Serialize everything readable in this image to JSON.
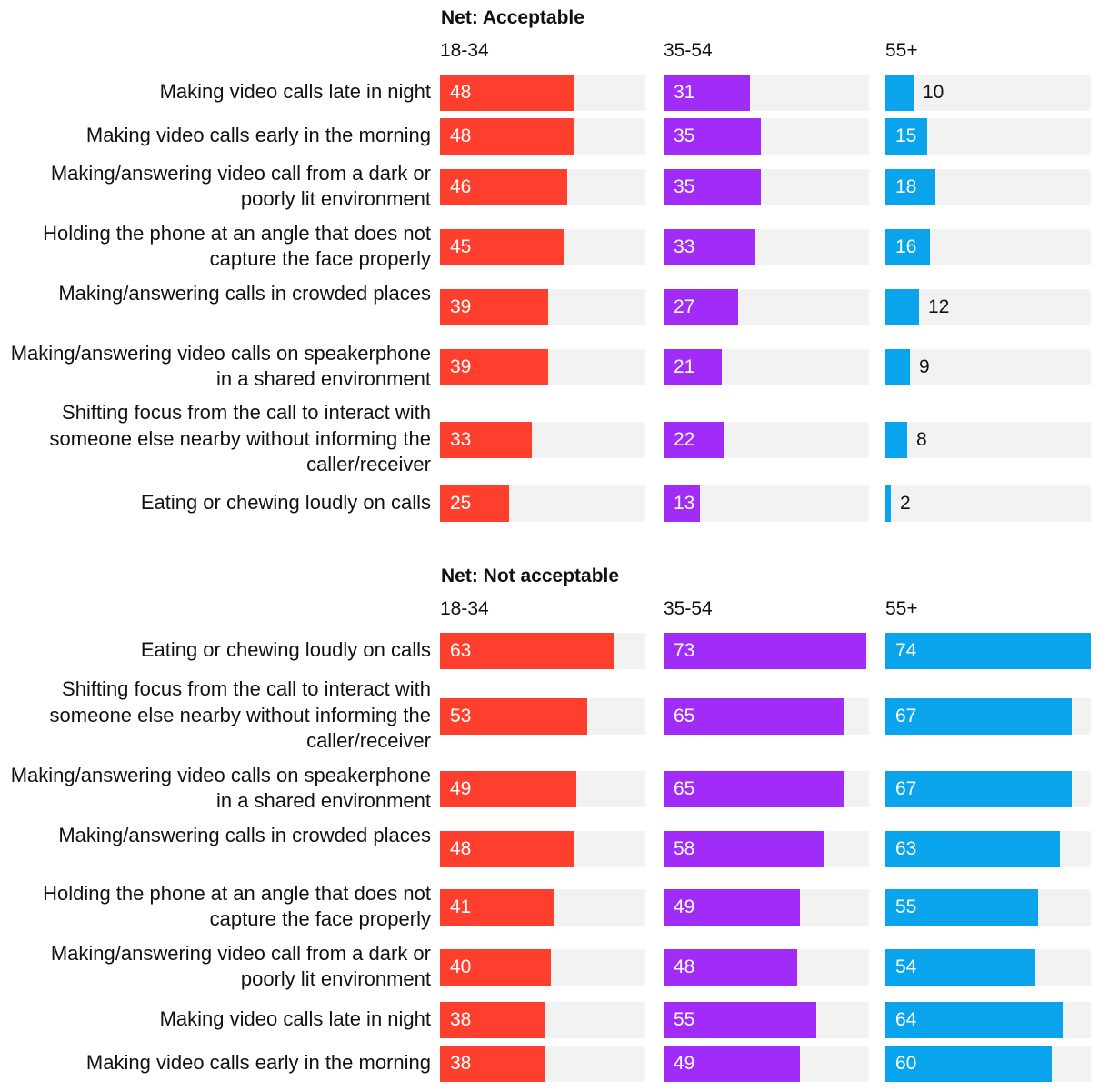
{
  "colors": {
    "age_18_34": "#ff3f2d",
    "age_35_54": "#a12cf7",
    "age_55_plus": "#0aa4ec",
    "track": "#f2f2f2"
  },
  "chart_data": [
    {
      "type": "bar",
      "orientation": "horizontal",
      "title": "Net: Acceptable",
      "series": [
        {
          "name": "18-34",
          "values": [
            48,
            48,
            46,
            45,
            39,
            39,
            33,
            25
          ]
        },
        {
          "name": "35-54",
          "values": [
            31,
            35,
            35,
            33,
            27,
            21,
            22,
            13
          ]
        },
        {
          "name": "55+",
          "values": [
            10,
            15,
            18,
            16,
            12,
            9,
            8,
            2
          ]
        }
      ],
      "categories": [
        "Making video calls late in night",
        "Making video calls early in the morning",
        "Making/answering video call from a dark or poorly lit environment",
        "Holding the phone at an angle that does not capture the face properly",
        "Making/answering calls in crowded places",
        "Making/answering video calls on speakerphone in a shared environment",
        "Shifting focus from the call to interact with someone else nearby without informing the caller/receiver",
        "Eating or chewing loudly on calls"
      ],
      "xlim": [
        0,
        74
      ]
    },
    {
      "type": "bar",
      "orientation": "horizontal",
      "title": "Net: Not acceptable",
      "series": [
        {
          "name": "18-34",
          "values": [
            63,
            53,
            49,
            48,
            41,
            40,
            38,
            38
          ]
        },
        {
          "name": "35-54",
          "values": [
            73,
            65,
            65,
            58,
            49,
            48,
            55,
            49
          ]
        },
        {
          "name": "55+",
          "values": [
            74,
            67,
            67,
            63,
            55,
            54,
            64,
            60
          ]
        }
      ],
      "categories": [
        "Eating or chewing loudly on calls",
        "Shifting focus from the call to interact with someone else nearby without informing the caller/receiver",
        "Making/answering video calls on speakerphone in a shared environment",
        "Making/answering calls in crowded places",
        "Holding the phone at an angle that does not capture the face properly",
        "Making/answering video call from a dark or poorly lit environment",
        "Making video calls late in night",
        "Making video calls early in the morning"
      ],
      "xlim": [
        0,
        74
      ]
    }
  ]
}
